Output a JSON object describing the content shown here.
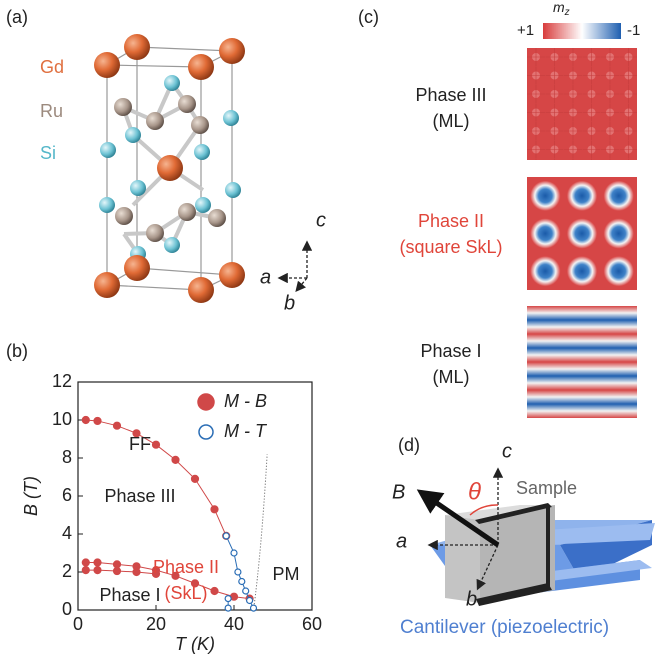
{
  "panel_labels": [
    "(a)",
    "(b)",
    "(c)",
    "(d)"
  ],
  "crystal": {
    "elements": [
      "Gd",
      "Ru",
      "Si"
    ],
    "axes": [
      "c",
      "a",
      "b"
    ]
  },
  "chart_data": {
    "type": "scatter",
    "xlabel": "T (K)",
    "ylabel": "B (T)",
    "xlim": [
      0,
      60
    ],
    "xticks": [
      0,
      20,
      40,
      60
    ],
    "ylim": [
      0,
      12
    ],
    "yticks": [
      0,
      2,
      4,
      6,
      8,
      10,
      12
    ],
    "legend": "upper right",
    "series": [
      {
        "name": "M - B",
        "color": "#d04848",
        "marker": "filled",
        "x": [
          2,
          5,
          10,
          15,
          20,
          25,
          30,
          35,
          38,
          null,
          2,
          5,
          10,
          15,
          20,
          25,
          30,
          35,
          40,
          44,
          null,
          2,
          5,
          10,
          15,
          20
        ],
        "values": [
          10,
          9.95,
          9.7,
          9.3,
          8.7,
          7.9,
          6.9,
          5.3,
          3.9,
          null,
          2.5,
          2.5,
          2.4,
          2.3,
          2.1,
          1.8,
          1.4,
          1.0,
          0.7,
          0.6,
          null,
          2.1,
          2.1,
          2.05,
          2.0,
          1.9
        ]
      },
      {
        "name": "M - T",
        "color": "#2a6db5",
        "marker": "open",
        "x": [
          38,
          40,
          41,
          42,
          43,
          44,
          45,
          null,
          38.5,
          38.5
        ],
        "values": [
          3.9,
          3.0,
          2.0,
          1.5,
          1.0,
          0.5,
          0.1,
          null,
          0.6,
          0.1
        ]
      }
    ],
    "annotations": [
      "FF",
      "Phase III",
      "Phase II",
      "(SkL)",
      "Phase I",
      "PM"
    ]
  },
  "textures": {
    "colorbar": {
      "label": "m",
      "subscript": "z",
      "min_label": "+1",
      "max_label": "-1"
    },
    "phases": [
      {
        "name": "Phase III",
        "note": "(ML)"
      },
      {
        "name": "Phase II",
        "note": "(square SkL)"
      },
      {
        "name": "Phase I",
        "note": "(ML)"
      }
    ]
  },
  "setup": {
    "field": "B",
    "angle": "θ",
    "axes": [
      "c",
      "a",
      "b"
    ],
    "sample": "Sample",
    "cantilever": "Cantilever (piezoelectric)"
  }
}
